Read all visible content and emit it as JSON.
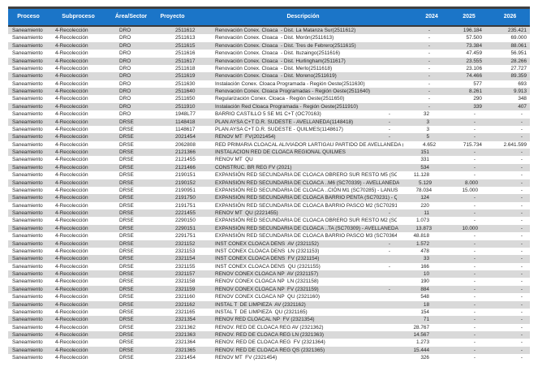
{
  "colors": {
    "header_bg": "#1B75C8",
    "header_text": "#FFFFFF",
    "stripe": "#D9D9D9",
    "text": "#262626",
    "top_border": "#404040"
  },
  "table": {
    "columns": [
      {
        "key": "proceso",
        "label": "Proceso"
      },
      {
        "key": "subproceso",
        "label": "Subproceso"
      },
      {
        "key": "area-sector",
        "label": "Área/Sector"
      },
      {
        "key": "proyecto",
        "label": "Proyecto"
      },
      {
        "key": "descripcion",
        "label": "Descripción"
      },
      {
        "key": "2024",
        "label": "2024"
      },
      {
        "key": "2025",
        "label": "2025"
      },
      {
        "key": "2026",
        "label": "2026"
      }
    ],
    "row_fields": [
      "proceso",
      "subproceso",
      "area_sector",
      "proyecto",
      "descripcion",
      "desc_dash",
      "y2024",
      "y2025",
      "y2026"
    ],
    "rows": [
      [
        "Saneamiento",
        "4-Recolección",
        "DRO",
        "2511612",
        "Renovación Conex. Cloaca  - Dist. La Matanza Sur(2511612)",
        "",
        "-",
        "196.184",
        "235.421"
      ],
      [
        "Saneamiento",
        "4-Recolección",
        "DRO",
        "2511613",
        "Renovación Conex. Cloaca  - Dist. Morón(2511613)",
        "",
        "-",
        "57.500",
        "69.000"
      ],
      [
        "Saneamiento",
        "4-Recolección",
        "DRO",
        "2511615",
        "Renovación Conex. Cloaca  - Dist. Tres de Febrero(2511615)",
        "",
        "-",
        "73.384",
        "88.061"
      ],
      [
        "Saneamiento",
        "4-Recolección",
        "DRO",
        "2511616",
        "Renovación Conex. Cloaca  - Dist. Ituzaingo(2511616)",
        "",
        "-",
        "47.459",
        "56.951"
      ],
      [
        "Saneamiento",
        "4-Recolección",
        "DRO",
        "2511617",
        "Renovación Conex. Cloaca  - Dist. Hurlingham(2511617)",
        "",
        "-",
        "23.555",
        "28.266"
      ],
      [
        "Saneamiento",
        "4-Recolección",
        "DRO",
        "2511618",
        "Renovación Conex. Cloaca  - Dist. Merlo(2511618)",
        "",
        "-",
        "23.106",
        "27.727"
      ],
      [
        "Saneamiento",
        "4-Recolección",
        "DRO",
        "2511619",
        "Renovación Conex. Cloaca  - Dist. Moreno(2511619)",
        "",
        "-",
        "74.466",
        "89.359"
      ],
      [
        "Saneamiento",
        "4-Recolección",
        "DRO",
        "2511630",
        "Instalación Conex. Cloaca Programada - Región Oeste(2511630)",
        "",
        "-",
        "577",
        "693"
      ],
      [
        "Saneamiento",
        "4-Recolección",
        "DRO",
        "2511640",
        "Renovación Conex. Cloaca Programadas - Región Oeste(2511640)",
        "",
        "-",
        "8.261",
        "9.913"
      ],
      [
        "Saneamiento",
        "4-Recolección",
        "DRO",
        "2511650",
        "Regularización Conex. Cloaca - Región Oeste(2511650)",
        "",
        "-",
        "290",
        "348"
      ],
      [
        "Saneamiento",
        "4-Recolección",
        "DRO",
        "2511910",
        "Instalación Red Cloaca Programada - Región Oeste(2511910)",
        "",
        "-",
        "339",
        "407"
      ],
      [
        "Saneamiento",
        "4-Recolección",
        "DRO",
        "1948L77",
        "BARRIO CASTILLO 5 SE M1 C+T (OC70163)",
        "-",
        "32",
        "-",
        "-"
      ],
      [
        "Saneamiento",
        "4-Recolección",
        "DRSE",
        "1148418",
        "PLAN AYSA C+T D.R. SUDESTE - AVELLANEDA(1148418)",
        "-",
        "3",
        "-",
        "-"
      ],
      [
        "Saneamiento",
        "4-Recolección",
        "DRSE",
        "1148617",
        "PLAN AYSA C+T D.R. SUDESTE - QUILMES(1148617)",
        "-",
        "3",
        "-",
        "-"
      ],
      [
        "Saneamiento",
        "4-Recolección",
        "DRSE",
        "2021454",
        "RENOV MT  FV(2021454)",
        "-",
        "5",
        "-",
        "-"
      ],
      [
        "Saneamiento",
        "4-Recolección",
        "DRSE",
        "2062808",
        "RED PRIMARIA CLOACAL ALIVIADOR LARTIGAU PARTIDO DE AVELLANEDA (2062808)",
        "",
        "4.652",
        "715.734",
        "2.641.599"
      ],
      [
        "Saneamiento",
        "4-Recolección",
        "DRSE",
        "2121366",
        "INSTALACION RED DE CLOACA REGIONAL QUILMES",
        "",
        "151",
        "-",
        "-"
      ],
      [
        "Saneamiento",
        "4-Recolección",
        "DRSE",
        "2121455",
        "RENOV MT  QU",
        "",
        "331",
        "-",
        "-"
      ],
      [
        "Saneamiento",
        "4-Recolección",
        "DRSE",
        "2121466",
        "CONSTRUC. BR REG FV (2021)",
        "",
        "534",
        "-",
        "-"
      ],
      [
        "Saneamiento",
        "4-Recolección",
        "DRSE",
        "2190151",
        "EXPANSIÓN RED SECUNDARIA DE CLOACA OBRERO SUR RESTO M5 (SC70252) - AVELLANEDA",
        "",
        "11.128",
        "-",
        "-"
      ],
      [
        "Saneamiento",
        "4-Recolección",
        "DRSE",
        "2190152",
        "EXPANSIÓN RED SECUNDARIA DE CLOACA ..M6 (SC70339) - AVELLANEDA (2190152)",
        "",
        "5.129",
        "8.000",
        "-"
      ],
      [
        "Saneamiento",
        "4-Recolección",
        "DRSE",
        "2190951",
        "EXPANSIÓN RED SECUNDARIA DE CLOACA ..CIÓN M1 (SC70285) - LANUS (2190951)",
        "",
        "78.034",
        "15.000",
        "-"
      ],
      [
        "Saneamiento",
        "4-Recolección",
        "DRSE",
        "2191750",
        "EXPANSIÓN RED SECUNDARIA DE CLOACA BARRIO PENTA (SC70231) - QUILMES (2191750)",
        "",
        "124",
        "-",
        "-"
      ],
      [
        "Saneamiento",
        "4-Recolección",
        "DRSE",
        "2191751",
        "EXPANSIÓN RED SECUNDARIA DE CLOACA BARRIO PASCO M2 (SC70291) - QUILMES",
        "",
        "220",
        "-",
        "-"
      ],
      [
        "Saneamiento",
        "4-Recolección",
        "DRSE",
        "2221455",
        "RENOV MT  QU (2221455)",
        "-",
        "11",
        "-",
        "-"
      ],
      [
        "Saneamiento",
        "4-Recolección",
        "DRSE",
        "2290150",
        "EXPANSIÓN RED SECUNDARIA DE CLOACA OBRERO SUR RESTO M2 (SC70295) - AVELLANEDA",
        "",
        "1.073",
        "-",
        "-"
      ],
      [
        "Saneamiento",
        "4-Recolección",
        "DRSE",
        "2290151",
        "EXPANSIÓN RED SECUNDARIA DE CLOACA ..TA (SC70309) - AVELLANEDA (2290151)",
        "",
        "13.873",
        "10.000",
        "-"
      ],
      [
        "Saneamiento",
        "4-Recolección",
        "DRSE",
        "2291751",
        "EXPANSIÓN RED SECUNDARIA DE CLOACA BARRIO PASCO M3 (SC70364) - QUILMES",
        "",
        "48.818",
        "-",
        "-"
      ],
      [
        "Saneamiento",
        "4-Recolección",
        "DRSE",
        "2321152",
        "INST CONEX CLOACA DENS  AV (2321152)",
        "-",
        "1.572",
        "-",
        "-"
      ],
      [
        "Saneamiento",
        "4-Recolección",
        "DRSE",
        "2321153",
        "INST CONEX CLOACA DENS  LN (2321153)",
        "-",
        "478",
        "-",
        "-"
      ],
      [
        "Saneamiento",
        "4-Recolección",
        "DRSE",
        "2321154",
        "INST CONEX CLOACA DENS  FV (2321154)",
        "",
        "33",
        "-",
        "-"
      ],
      [
        "Saneamiento",
        "4-Recolección",
        "DRSE",
        "2321155",
        "INST CONEX CLOACA DENS  QU (2321155)",
        "-",
        "166",
        "-",
        "-"
      ],
      [
        "Saneamiento",
        "4-Recolección",
        "DRSE",
        "2321157",
        "RENOV CONEX CLOACA NP  AV (2321157)",
        "",
        "10",
        "-",
        "-"
      ],
      [
        "Saneamiento",
        "4-Recolección",
        "DRSE",
        "2321158",
        "RENOV CONEX CLOACA NP  LN (2321158)",
        "",
        "190",
        "-",
        "-"
      ],
      [
        "Saneamiento",
        "4-Recolección",
        "DRSE",
        "2321159",
        "RENOV CONEX CLOACA NP  FV (2321159)",
        "-",
        "884",
        "-",
        "-"
      ],
      [
        "Saneamiento",
        "4-Recolección",
        "DRSE",
        "2321160",
        "RENOV CONEX CLOACA NP  QU (2321160)",
        "",
        "548",
        "-",
        "-"
      ],
      [
        "Saneamiento",
        "4-Recolección",
        "DRSE",
        "2321162",
        "INSTAL T  DE LIMPIEZA  AV (2321162)",
        "",
        "18",
        "-",
        "-"
      ],
      [
        "Saneamiento",
        "4-Recolección",
        "DRSE",
        "2321165",
        "INSTAL T  DE LIMPIEZA  QU (2321165)",
        "",
        "154",
        "-",
        "-"
      ],
      [
        "Saneamiento",
        "4-Recolección",
        "DRSE",
        "2321354",
        "RENOV RED CLOACAL NP  FV (2321354)",
        "",
        "71",
        "-",
        "-"
      ],
      [
        "Saneamiento",
        "4-Recolección",
        "DRSE",
        "2321362",
        "RENOV. RED DE CLOACA REG AV (2321362)",
        "",
        "28.767",
        "-",
        "-"
      ],
      [
        "Saneamiento",
        "4-Recolección",
        "DRSE",
        "2321363",
        "RENOV. RED DE CLOACA REG LN (2321363)",
        "",
        "14.567",
        "-",
        "-"
      ],
      [
        "Saneamiento",
        "4-Recolección",
        "DRSE",
        "2321364",
        "RENOV. RED DE CLOACA REG  FV (2321364)",
        "",
        "1.273",
        "-",
        "-"
      ],
      [
        "Saneamiento",
        "4-Recolección",
        "DRSE",
        "2321365",
        "RENOV. RED DE CLOACA REG QS (2321365)",
        "",
        "15.444",
        "-",
        "-"
      ],
      [
        "Saneamiento",
        "4-Recolección",
        "DRSE",
        "2321454",
        "RENOV MT  FV (2321454)",
        "",
        "326",
        "-",
        "-"
      ]
    ]
  }
}
